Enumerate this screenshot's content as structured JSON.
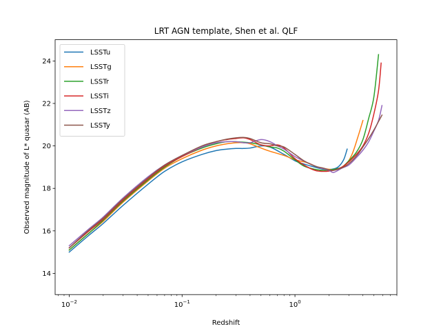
{
  "chart_data": {
    "type": "line",
    "title": "LRT AGN template, Shen et al. QLF",
    "xlabel": "Redshift",
    "ylabel": "Observed magnitude of L* quasar (AB)",
    "xscale": "log",
    "xlim": [
      0.0075,
      8.0
    ],
    "ylim": [
      13.0,
      25.0
    ],
    "xticks": [
      {
        "value": 0.01,
        "base": "10",
        "exp": "−2"
      },
      {
        "value": 0.1,
        "base": "10",
        "exp": "−1"
      },
      {
        "value": 1,
        "base": "10",
        "exp": "0"
      }
    ],
    "yticks": [
      14,
      16,
      18,
      20,
      22,
      24
    ],
    "grid": false,
    "legend_position": "top-left",
    "series": [
      {
        "name": "LSSTu",
        "color": "#1f77b4",
        "x": [
          0.01,
          0.015,
          0.02,
          0.03,
          0.05,
          0.07,
          0.1,
          0.15,
          0.2,
          0.25,
          0.3,
          0.35,
          0.4,
          0.5,
          0.6,
          0.8,
          1.0,
          1.2,
          1.5,
          1.8,
          2.1,
          2.4,
          2.7,
          2.9
        ],
        "y": [
          15.0,
          15.8,
          16.35,
          17.2,
          18.2,
          18.8,
          19.25,
          19.6,
          19.78,
          19.85,
          19.88,
          19.88,
          19.9,
          20.0,
          19.95,
          19.6,
          19.3,
          19.15,
          19.0,
          18.9,
          18.9,
          19.0,
          19.35,
          19.85
        ]
      },
      {
        "name": "LSSTg",
        "color": "#ff7f0e",
        "x": [
          0.01,
          0.015,
          0.02,
          0.03,
          0.05,
          0.07,
          0.1,
          0.15,
          0.2,
          0.25,
          0.3,
          0.35,
          0.4,
          0.5,
          0.6,
          0.8,
          1.0,
          1.3,
          1.6,
          2.0,
          2.4,
          2.8,
          3.2,
          3.6,
          4.0
        ],
        "y": [
          15.1,
          15.9,
          16.45,
          17.35,
          18.35,
          18.95,
          19.4,
          19.8,
          20.0,
          20.1,
          20.15,
          20.15,
          20.1,
          19.9,
          19.75,
          19.55,
          19.35,
          19.2,
          19.0,
          18.9,
          18.9,
          19.1,
          19.6,
          20.4,
          21.2
        ]
      },
      {
        "name": "LSSTr",
        "color": "#2ca02c",
        "x": [
          0.01,
          0.015,
          0.02,
          0.03,
          0.05,
          0.07,
          0.1,
          0.15,
          0.2,
          0.25,
          0.3,
          0.4,
          0.5,
          0.6,
          0.7,
          0.8,
          1.0,
          1.2,
          1.5,
          1.8,
          2.2,
          2.6,
          3.0,
          3.5,
          4.0,
          4.5,
          5.0,
          5.5
        ],
        "y": [
          15.1,
          15.9,
          16.5,
          17.4,
          18.4,
          19.0,
          19.5,
          19.9,
          20.1,
          20.2,
          20.2,
          20.15,
          20.05,
          19.95,
          19.9,
          19.75,
          19.35,
          19.05,
          18.9,
          18.85,
          18.9,
          19.0,
          19.3,
          19.7,
          20.3,
          21.3,
          22.3,
          24.3
        ]
      },
      {
        "name": "LSSTi",
        "color": "#d62728",
        "x": [
          0.01,
          0.015,
          0.02,
          0.03,
          0.05,
          0.07,
          0.1,
          0.15,
          0.2,
          0.25,
          0.3,
          0.35,
          0.4,
          0.5,
          0.6,
          0.7,
          0.8,
          1.0,
          1.2,
          1.5,
          1.8,
          2.2,
          2.6,
          3.0,
          3.5,
          4.0,
          4.5,
          5.0,
          5.5,
          5.8
        ],
        "y": [
          15.2,
          16.0,
          16.55,
          17.45,
          18.45,
          19.05,
          19.5,
          19.95,
          20.2,
          20.3,
          20.35,
          20.38,
          20.3,
          20.05,
          20.0,
          20.05,
          19.9,
          19.4,
          19.1,
          18.85,
          18.8,
          18.85,
          19.0,
          19.25,
          19.6,
          20.0,
          20.6,
          21.5,
          22.6,
          23.9
        ]
      },
      {
        "name": "LSSTz",
        "color": "#9467bd",
        "x": [
          0.01,
          0.015,
          0.02,
          0.03,
          0.05,
          0.07,
          0.1,
          0.15,
          0.2,
          0.25,
          0.3,
          0.35,
          0.4,
          0.5,
          0.6,
          0.7,
          0.8,
          1.0,
          1.3,
          1.6,
          2.0,
          2.2,
          2.6,
          3.0,
          3.5,
          4.0,
          4.5,
          5.0,
          5.5,
          5.9
        ],
        "y": [
          15.3,
          16.1,
          16.65,
          17.55,
          18.55,
          19.1,
          19.55,
          19.95,
          20.15,
          20.2,
          20.2,
          20.15,
          20.15,
          20.3,
          20.2,
          20.0,
          19.85,
          19.5,
          19.2,
          19.0,
          18.85,
          18.75,
          18.95,
          19.1,
          19.45,
          19.8,
          20.2,
          20.7,
          21.2,
          21.9
        ]
      },
      {
        "name": "LSSTy",
        "color": "#8c564b",
        "x": [
          0.01,
          0.015,
          0.02,
          0.03,
          0.05,
          0.07,
          0.1,
          0.15,
          0.2,
          0.25,
          0.3,
          0.35,
          0.4,
          0.5,
          0.6,
          0.7,
          0.8,
          1.0,
          1.2,
          1.5,
          1.8,
          2.1,
          2.4,
          2.8,
          3.2,
          3.6,
          4.0,
          4.5,
          5.0,
          5.5,
          5.9
        ],
        "y": [
          15.2,
          16.05,
          16.6,
          17.5,
          18.5,
          19.1,
          19.55,
          20.0,
          20.2,
          20.32,
          20.38,
          20.4,
          20.35,
          20.15,
          20.1,
          20.0,
          19.95,
          19.6,
          19.3,
          19.05,
          18.95,
          18.85,
          18.9,
          19.05,
          19.3,
          19.6,
          19.95,
          20.35,
          20.75,
          21.15,
          21.45
        ]
      }
    ]
  }
}
